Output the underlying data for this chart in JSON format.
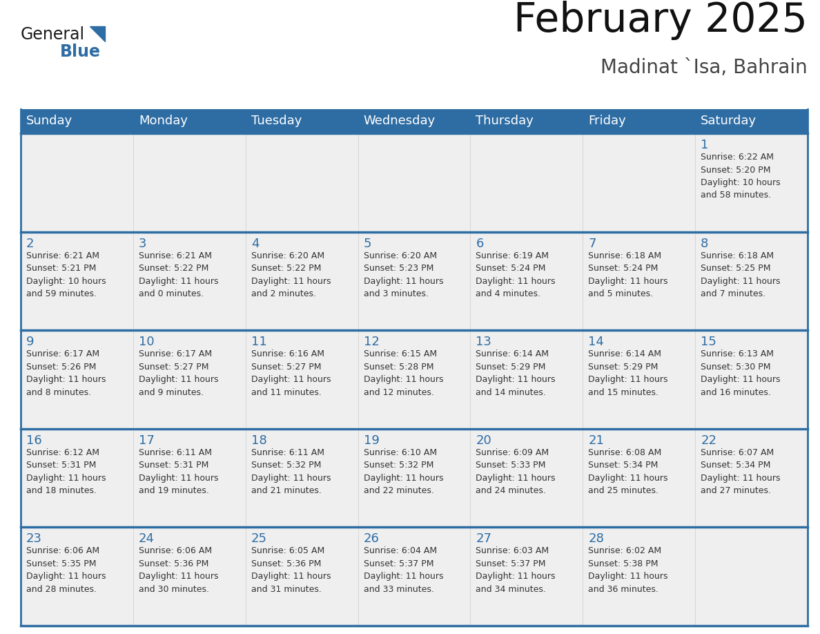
{
  "title": "February 2025",
  "subtitle": "Madinat `Isa, Bahrain",
  "header_bg": "#2E6DA4",
  "header_text_color": "#FFFFFF",
  "cell_bg": "#EFEFEF",
  "cell_bg_empty": "#F5F5F5",
  "divider_color": "#2E6DA4",
  "text_color": "#333333",
  "day_num_color": "#2E6DA4",
  "day_headers": [
    "Sunday",
    "Monday",
    "Tuesday",
    "Wednesday",
    "Thursday",
    "Friday",
    "Saturday"
  ],
  "calendar": [
    [
      {
        "day": "",
        "info": ""
      },
      {
        "day": "",
        "info": ""
      },
      {
        "day": "",
        "info": ""
      },
      {
        "day": "",
        "info": ""
      },
      {
        "day": "",
        "info": ""
      },
      {
        "day": "",
        "info": ""
      },
      {
        "day": "1",
        "info": "Sunrise: 6:22 AM\nSunset: 5:20 PM\nDaylight: 10 hours\nand 58 minutes."
      }
    ],
    [
      {
        "day": "2",
        "info": "Sunrise: 6:21 AM\nSunset: 5:21 PM\nDaylight: 10 hours\nand 59 minutes."
      },
      {
        "day": "3",
        "info": "Sunrise: 6:21 AM\nSunset: 5:22 PM\nDaylight: 11 hours\nand 0 minutes."
      },
      {
        "day": "4",
        "info": "Sunrise: 6:20 AM\nSunset: 5:22 PM\nDaylight: 11 hours\nand 2 minutes."
      },
      {
        "day": "5",
        "info": "Sunrise: 6:20 AM\nSunset: 5:23 PM\nDaylight: 11 hours\nand 3 minutes."
      },
      {
        "day": "6",
        "info": "Sunrise: 6:19 AM\nSunset: 5:24 PM\nDaylight: 11 hours\nand 4 minutes."
      },
      {
        "day": "7",
        "info": "Sunrise: 6:18 AM\nSunset: 5:24 PM\nDaylight: 11 hours\nand 5 minutes."
      },
      {
        "day": "8",
        "info": "Sunrise: 6:18 AM\nSunset: 5:25 PM\nDaylight: 11 hours\nand 7 minutes."
      }
    ],
    [
      {
        "day": "9",
        "info": "Sunrise: 6:17 AM\nSunset: 5:26 PM\nDaylight: 11 hours\nand 8 minutes."
      },
      {
        "day": "10",
        "info": "Sunrise: 6:17 AM\nSunset: 5:27 PM\nDaylight: 11 hours\nand 9 minutes."
      },
      {
        "day": "11",
        "info": "Sunrise: 6:16 AM\nSunset: 5:27 PM\nDaylight: 11 hours\nand 11 minutes."
      },
      {
        "day": "12",
        "info": "Sunrise: 6:15 AM\nSunset: 5:28 PM\nDaylight: 11 hours\nand 12 minutes."
      },
      {
        "day": "13",
        "info": "Sunrise: 6:14 AM\nSunset: 5:29 PM\nDaylight: 11 hours\nand 14 minutes."
      },
      {
        "day": "14",
        "info": "Sunrise: 6:14 AM\nSunset: 5:29 PM\nDaylight: 11 hours\nand 15 minutes."
      },
      {
        "day": "15",
        "info": "Sunrise: 6:13 AM\nSunset: 5:30 PM\nDaylight: 11 hours\nand 16 minutes."
      }
    ],
    [
      {
        "day": "16",
        "info": "Sunrise: 6:12 AM\nSunset: 5:31 PM\nDaylight: 11 hours\nand 18 minutes."
      },
      {
        "day": "17",
        "info": "Sunrise: 6:11 AM\nSunset: 5:31 PM\nDaylight: 11 hours\nand 19 minutes."
      },
      {
        "day": "18",
        "info": "Sunrise: 6:11 AM\nSunset: 5:32 PM\nDaylight: 11 hours\nand 21 minutes."
      },
      {
        "day": "19",
        "info": "Sunrise: 6:10 AM\nSunset: 5:32 PM\nDaylight: 11 hours\nand 22 minutes."
      },
      {
        "day": "20",
        "info": "Sunrise: 6:09 AM\nSunset: 5:33 PM\nDaylight: 11 hours\nand 24 minutes."
      },
      {
        "day": "21",
        "info": "Sunrise: 6:08 AM\nSunset: 5:34 PM\nDaylight: 11 hours\nand 25 minutes."
      },
      {
        "day": "22",
        "info": "Sunrise: 6:07 AM\nSunset: 5:34 PM\nDaylight: 11 hours\nand 27 minutes."
      }
    ],
    [
      {
        "day": "23",
        "info": "Sunrise: 6:06 AM\nSunset: 5:35 PM\nDaylight: 11 hours\nand 28 minutes."
      },
      {
        "day": "24",
        "info": "Sunrise: 6:06 AM\nSunset: 5:36 PM\nDaylight: 11 hours\nand 30 minutes."
      },
      {
        "day": "25",
        "info": "Sunrise: 6:05 AM\nSunset: 5:36 PM\nDaylight: 11 hours\nand 31 minutes."
      },
      {
        "day": "26",
        "info": "Sunrise: 6:04 AM\nSunset: 5:37 PM\nDaylight: 11 hours\nand 33 minutes."
      },
      {
        "day": "27",
        "info": "Sunrise: 6:03 AM\nSunset: 5:37 PM\nDaylight: 11 hours\nand 34 minutes."
      },
      {
        "day": "28",
        "info": "Sunrise: 6:02 AM\nSunset: 5:38 PM\nDaylight: 11 hours\nand 36 minutes."
      },
      {
        "day": "",
        "info": ""
      }
    ]
  ],
  "logo_text_general": "General",
  "logo_text_blue": "Blue",
  "logo_color_general": "#1a1a1a",
  "logo_color_blue": "#2E6DA4",
  "logo_triangle_color": "#2E6DA4",
  "title_color": "#111111",
  "subtitle_color": "#444444"
}
